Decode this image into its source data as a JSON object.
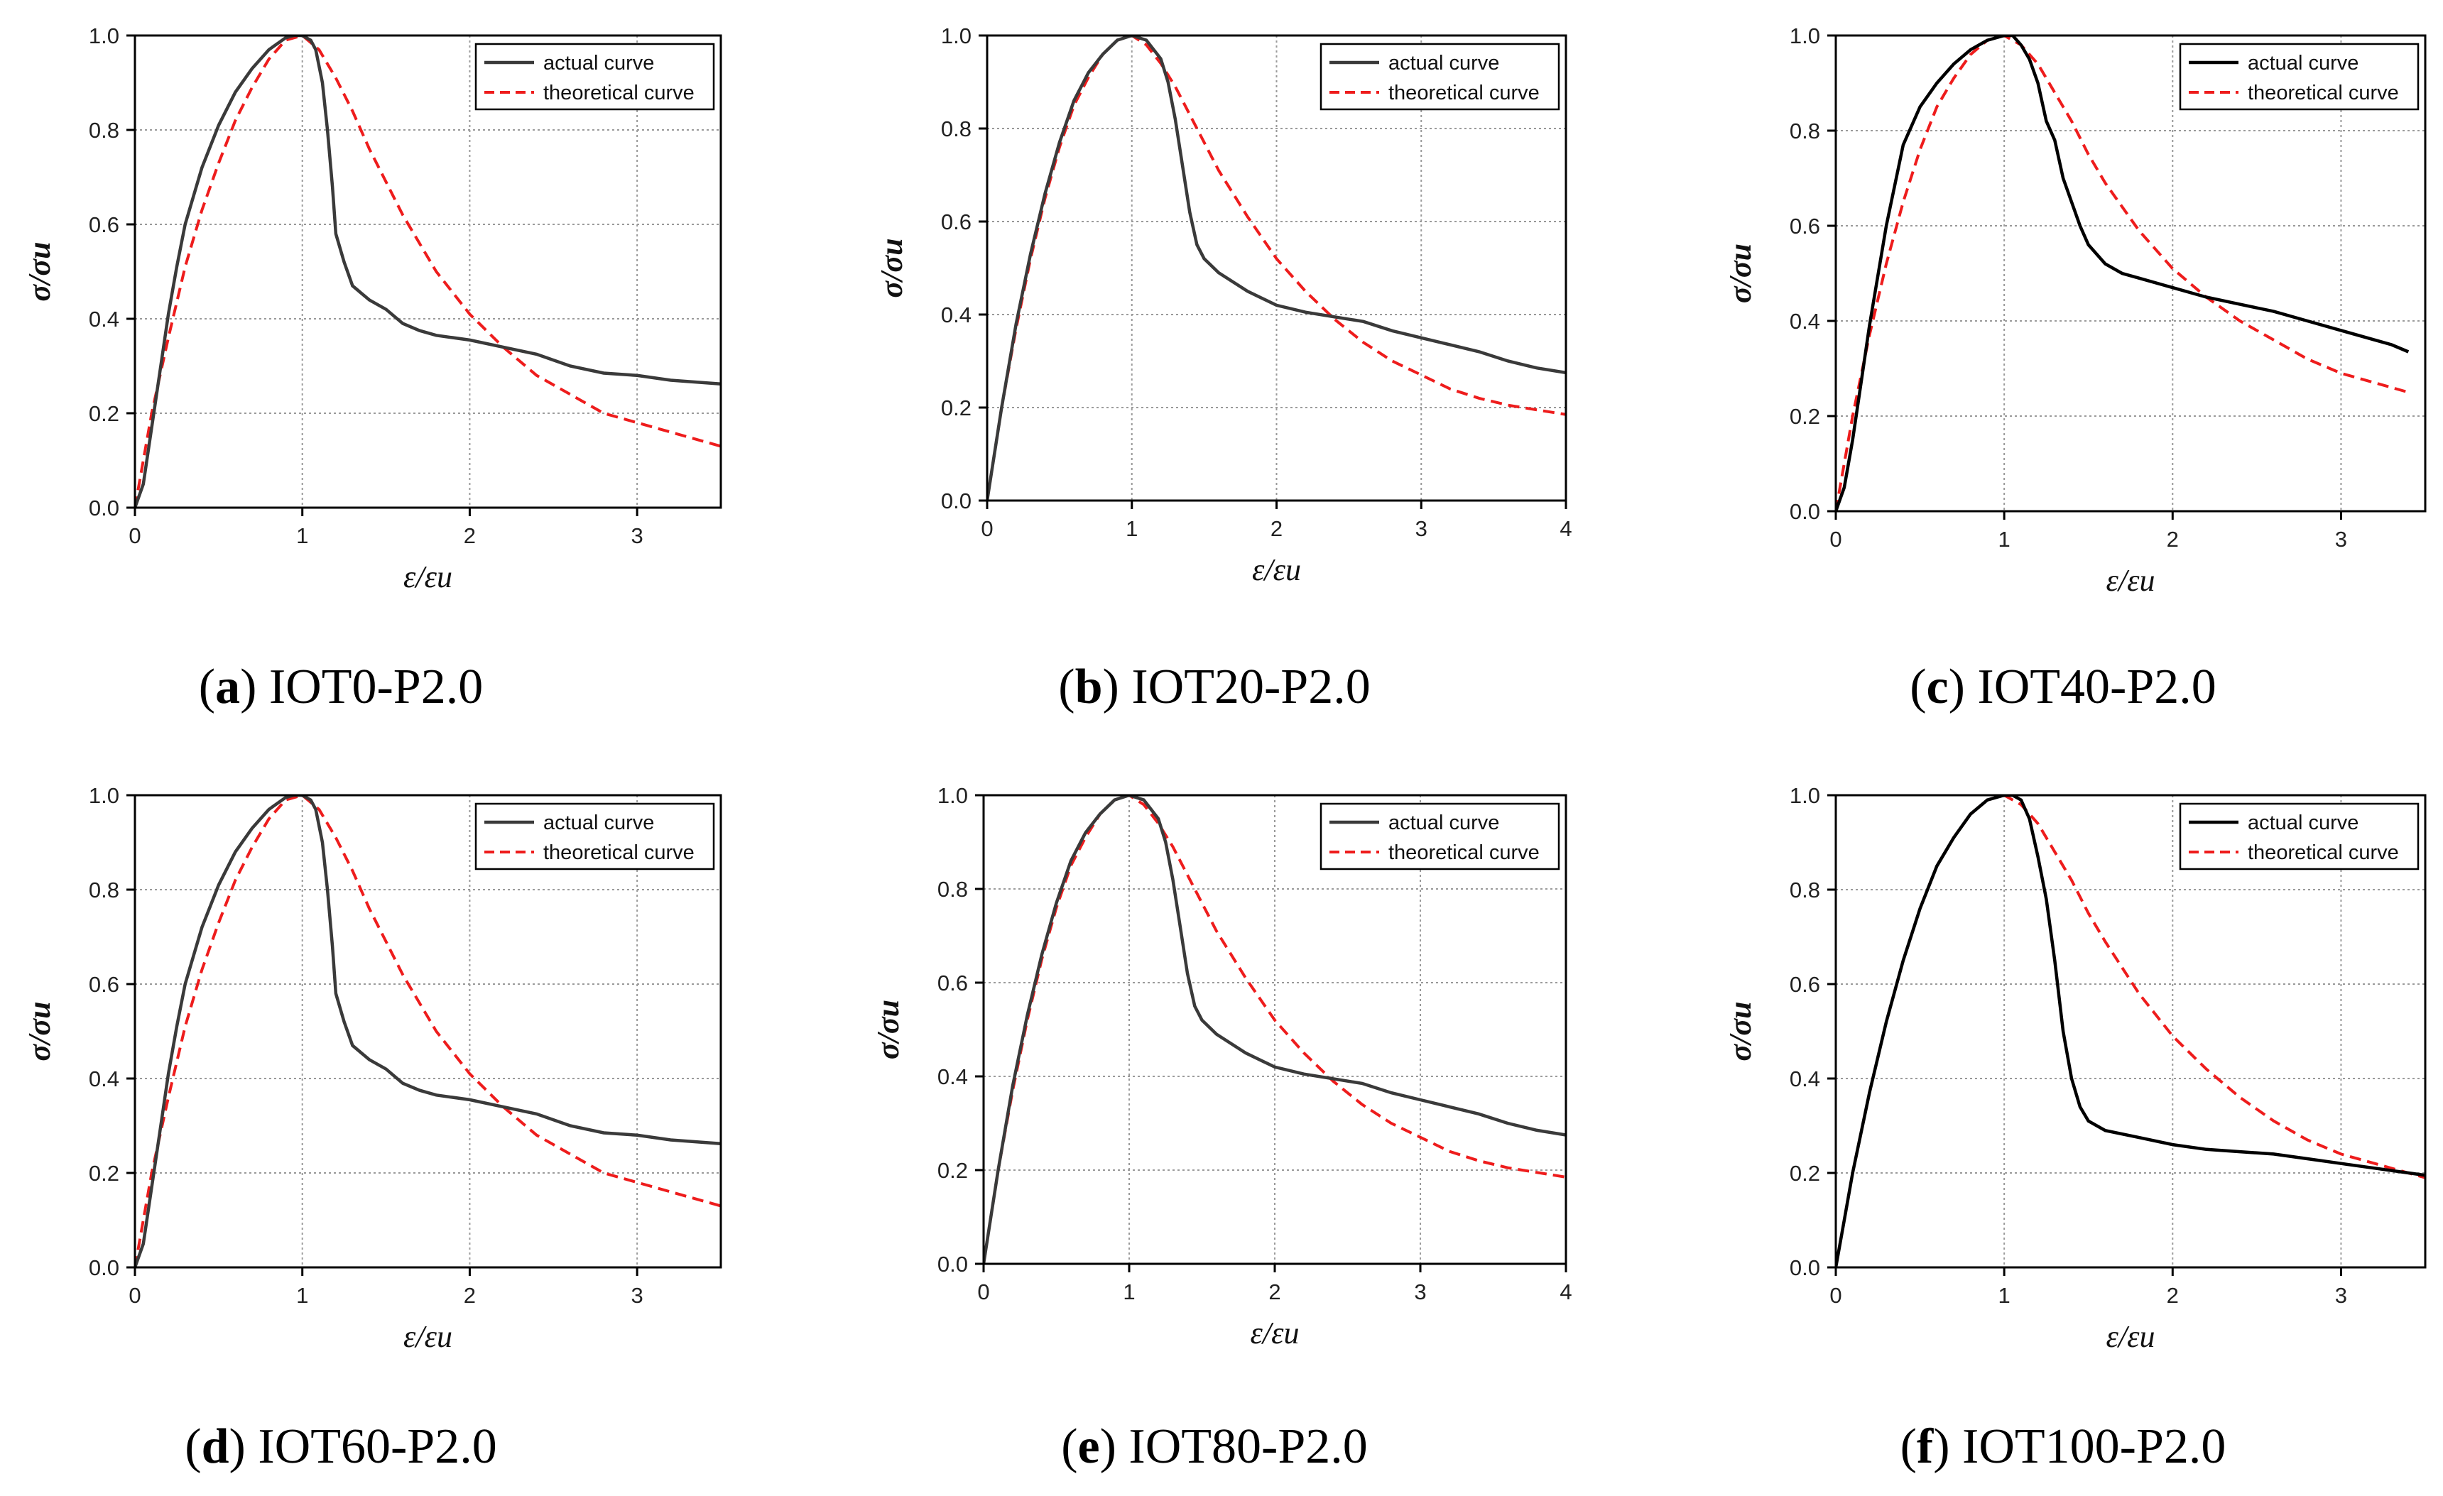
{
  "figure": {
    "actual_color": "#3a3a3a",
    "actual_color_dark": "#000000",
    "theory_color": "#ee1c1c",
    "grid_color": "#9a9a9a"
  },
  "chart_data": [
    {
      "type": "line",
      "letter": "a",
      "specimen": "IOT0-P2.0",
      "xlabel": "ε/εu",
      "ylabel": "σ/σu",
      "xlim": [
        0,
        3.5
      ],
      "ylim": [
        0,
        1.0
      ],
      "xticks": [
        0,
        1,
        2,
        3
      ],
      "yticks": [
        0,
        0.2,
        0.4,
        0.6,
        0.8,
        1.0
      ],
      "ytick_labels": [
        "0.0",
        "0.2",
        "0.4",
        "0.6",
        "0.8",
        "1.0"
      ],
      "grid": true,
      "legend": "top-right",
      "actual_style": "grey",
      "series": [
        {
          "name": "actual curve",
          "x": [
            0,
            0.05,
            0.1,
            0.15,
            0.2,
            0.25,
            0.3,
            0.4,
            0.5,
            0.6,
            0.7,
            0.8,
            0.9,
            0.95,
            1.0,
            1.05,
            1.08,
            1.12,
            1.15,
            1.18,
            1.2,
            1.25,
            1.3,
            1.4,
            1.5,
            1.6,
            1.7,
            1.8,
            2.0,
            2.2,
            2.4,
            2.6,
            2.8,
            3.0,
            3.2,
            3.5
          ],
          "y": [
            0,
            0.05,
            0.17,
            0.29,
            0.41,
            0.51,
            0.6,
            0.72,
            0.81,
            0.88,
            0.93,
            0.97,
            0.995,
            1.0,
            1.0,
            0.99,
            0.97,
            0.9,
            0.8,
            0.68,
            0.58,
            0.52,
            0.47,
            0.44,
            0.42,
            0.39,
            0.375,
            0.365,
            0.355,
            0.34,
            0.325,
            0.3,
            0.285,
            0.28,
            0.27,
            0.262
          ]
        },
        {
          "name": "theoretical curve",
          "x": [
            0,
            0.1,
            0.2,
            0.3,
            0.4,
            0.5,
            0.6,
            0.7,
            0.8,
            0.9,
            1.0,
            1.1,
            1.2,
            1.3,
            1.4,
            1.5,
            1.6,
            1.8,
            2.0,
            2.2,
            2.4,
            2.6,
            2.8,
            3.0,
            3.2,
            3.5
          ],
          "y": [
            0,
            0.2,
            0.36,
            0.51,
            0.63,
            0.73,
            0.82,
            0.89,
            0.95,
            0.99,
            1.0,
            0.97,
            0.91,
            0.84,
            0.76,
            0.69,
            0.62,
            0.5,
            0.41,
            0.34,
            0.28,
            0.24,
            0.2,
            0.18,
            0.16,
            0.13
          ]
        }
      ]
    },
    {
      "type": "line",
      "letter": "b",
      "specimen": "IOT20-P2.0",
      "xlabel": "ε/εu",
      "ylabel": "σ/σu",
      "xlim": [
        0,
        4
      ],
      "ylim": [
        0,
        1.0
      ],
      "xticks": [
        0,
        1,
        2,
        3,
        4
      ],
      "yticks": [
        0,
        0.2,
        0.4,
        0.6,
        0.8,
        1.0
      ],
      "ytick_labels": [
        "0.0",
        "0.2",
        "0.4",
        "0.6",
        "0.8",
        "1.0"
      ],
      "grid": true,
      "legend": "top-right",
      "actual_style": "grey",
      "series": [
        {
          "name": "actual curve",
          "x": [
            0,
            0.1,
            0.2,
            0.3,
            0.4,
            0.5,
            0.6,
            0.7,
            0.8,
            0.9,
            1.0,
            1.1,
            1.2,
            1.25,
            1.3,
            1.35,
            1.4,
            1.45,
            1.5,
            1.6,
            1.8,
            2.0,
            2.2,
            2.4,
            2.6,
            2.8,
            3.0,
            3.2,
            3.4,
            3.6,
            3.8,
            4.0
          ],
          "y": [
            0,
            0.2,
            0.38,
            0.53,
            0.66,
            0.77,
            0.86,
            0.92,
            0.96,
            0.99,
            1.0,
            0.99,
            0.95,
            0.9,
            0.82,
            0.72,
            0.62,
            0.55,
            0.52,
            0.49,
            0.45,
            0.42,
            0.405,
            0.395,
            0.385,
            0.365,
            0.35,
            0.335,
            0.32,
            0.3,
            0.285,
            0.275
          ]
        },
        {
          "name": "theoretical curve",
          "x": [
            0,
            0.1,
            0.2,
            0.3,
            0.4,
            0.5,
            0.6,
            0.7,
            0.8,
            0.9,
            1.0,
            1.1,
            1.2,
            1.3,
            1.4,
            1.5,
            1.6,
            1.8,
            2.0,
            2.2,
            2.4,
            2.6,
            2.8,
            3.0,
            3.2,
            3.4,
            3.6,
            3.8,
            4.0
          ],
          "y": [
            0,
            0.2,
            0.37,
            0.52,
            0.65,
            0.76,
            0.85,
            0.91,
            0.96,
            0.99,
            1.0,
            0.98,
            0.94,
            0.89,
            0.83,
            0.77,
            0.71,
            0.61,
            0.52,
            0.45,
            0.39,
            0.34,
            0.3,
            0.27,
            0.24,
            0.22,
            0.205,
            0.195,
            0.185
          ]
        }
      ]
    },
    {
      "type": "line",
      "letter": "c",
      "specimen": "IOT40-P2.0",
      "xlabel": "ε/εu",
      "ylabel": "σ/σu",
      "xlim": [
        0,
        3.5
      ],
      "ylim": [
        0,
        1.0
      ],
      "xticks": [
        0,
        1,
        2,
        3
      ],
      "yticks": [
        0,
        0.2,
        0.4,
        0.6,
        0.8,
        1.0
      ],
      "ytick_labels": [
        "0.0",
        "0.2",
        "0.4",
        "0.6",
        "0.8",
        "1.0"
      ],
      "grid": true,
      "legend": "top-right",
      "actual_style": "black",
      "series": [
        {
          "name": "actual curve",
          "x": [
            0,
            0.05,
            0.1,
            0.15,
            0.2,
            0.3,
            0.4,
            0.5,
            0.6,
            0.7,
            0.8,
            0.9,
            1.0,
            1.05,
            1.1,
            1.15,
            1.2,
            1.25,
            1.3,
            1.35,
            1.4,
            1.45,
            1.5,
            1.6,
            1.7,
            1.8,
            2.0,
            2.2,
            2.4,
            2.6,
            2.8,
            3.0,
            3.2,
            3.3,
            3.4
          ],
          "y": [
            0,
            0.05,
            0.15,
            0.27,
            0.39,
            0.6,
            0.77,
            0.85,
            0.9,
            0.94,
            0.97,
            0.99,
            1.0,
            1.0,
            0.98,
            0.95,
            0.9,
            0.82,
            0.78,
            0.7,
            0.65,
            0.6,
            0.56,
            0.52,
            0.5,
            0.49,
            0.47,
            0.45,
            0.435,
            0.42,
            0.4,
            0.38,
            0.36,
            0.35,
            0.335
          ]
        },
        {
          "name": "theoretical curve",
          "x": [
            0,
            0.1,
            0.2,
            0.3,
            0.4,
            0.5,
            0.6,
            0.7,
            0.8,
            0.9,
            1.0,
            1.1,
            1.2,
            1.3,
            1.4,
            1.5,
            1.6,
            1.8,
            2.0,
            2.2,
            2.4,
            2.6,
            2.8,
            3.0,
            3.2,
            3.4
          ],
          "y": [
            0,
            0.2,
            0.37,
            0.52,
            0.65,
            0.76,
            0.85,
            0.91,
            0.96,
            0.99,
            1.0,
            0.98,
            0.94,
            0.88,
            0.82,
            0.75,
            0.69,
            0.59,
            0.51,
            0.45,
            0.4,
            0.36,
            0.32,
            0.29,
            0.27,
            0.25
          ]
        }
      ]
    },
    {
      "type": "line",
      "letter": "d",
      "specimen": "IOT60-P2.0",
      "xlabel": "ε/εu",
      "ylabel": "σ/σu",
      "xlim": [
        0,
        3.5
      ],
      "ylim": [
        0,
        1.0
      ],
      "xticks": [
        0,
        1,
        2,
        3
      ],
      "yticks": [
        0,
        0.2,
        0.4,
        0.6,
        0.8,
        1.0
      ],
      "ytick_labels": [
        "0.0",
        "0.2",
        "0.4",
        "0.6",
        "0.8",
        "1.0"
      ],
      "grid": true,
      "legend": "top-right",
      "actual_style": "grey",
      "series": [
        {
          "name": "actual curve",
          "x": [
            0,
            0.05,
            0.1,
            0.15,
            0.2,
            0.25,
            0.3,
            0.4,
            0.5,
            0.6,
            0.7,
            0.8,
            0.9,
            0.95,
            1.0,
            1.05,
            1.08,
            1.12,
            1.15,
            1.18,
            1.2,
            1.25,
            1.3,
            1.4,
            1.5,
            1.6,
            1.7,
            1.8,
            2.0,
            2.2,
            2.4,
            2.6,
            2.8,
            3.0,
            3.2,
            3.5
          ],
          "y": [
            0,
            0.05,
            0.17,
            0.29,
            0.41,
            0.51,
            0.6,
            0.72,
            0.81,
            0.88,
            0.93,
            0.97,
            0.995,
            1.0,
            1.0,
            0.99,
            0.97,
            0.9,
            0.8,
            0.68,
            0.58,
            0.52,
            0.47,
            0.44,
            0.42,
            0.39,
            0.375,
            0.365,
            0.355,
            0.34,
            0.325,
            0.3,
            0.285,
            0.28,
            0.27,
            0.262
          ]
        },
        {
          "name": "theoretical curve",
          "x": [
            0,
            0.1,
            0.2,
            0.3,
            0.4,
            0.5,
            0.6,
            0.7,
            0.8,
            0.9,
            1.0,
            1.1,
            1.2,
            1.3,
            1.4,
            1.5,
            1.6,
            1.8,
            2.0,
            2.2,
            2.4,
            2.6,
            2.8,
            3.0,
            3.2,
            3.5
          ],
          "y": [
            0,
            0.2,
            0.36,
            0.51,
            0.63,
            0.73,
            0.82,
            0.89,
            0.95,
            0.99,
            1.0,
            0.97,
            0.91,
            0.84,
            0.76,
            0.69,
            0.62,
            0.5,
            0.41,
            0.34,
            0.28,
            0.24,
            0.2,
            0.18,
            0.16,
            0.13
          ]
        }
      ]
    },
    {
      "type": "line",
      "letter": "e",
      "specimen": "IOT80-P2.0",
      "xlabel": "ε/εu",
      "ylabel": "σ/σu",
      "xlim": [
        0,
        4
      ],
      "ylim": [
        0,
        1.0
      ],
      "xticks": [
        0,
        1,
        2,
        3,
        4
      ],
      "yticks": [
        0,
        0.2,
        0.4,
        0.6,
        0.8,
        1.0
      ],
      "ytick_labels": [
        "0.0",
        "0.2",
        "0.4",
        "0.6",
        "0.8",
        "1.0"
      ],
      "grid": true,
      "legend": "top-right",
      "actual_style": "grey",
      "series": [
        {
          "name": "actual curve",
          "x": [
            0,
            0.1,
            0.2,
            0.3,
            0.4,
            0.5,
            0.6,
            0.7,
            0.8,
            0.9,
            1.0,
            1.1,
            1.2,
            1.25,
            1.3,
            1.35,
            1.4,
            1.45,
            1.5,
            1.6,
            1.8,
            2.0,
            2.2,
            2.4,
            2.6,
            2.8,
            3.0,
            3.2,
            3.4,
            3.6,
            3.8,
            4.0
          ],
          "y": [
            0,
            0.2,
            0.38,
            0.53,
            0.66,
            0.77,
            0.86,
            0.92,
            0.96,
            0.99,
            1.0,
            0.99,
            0.95,
            0.9,
            0.82,
            0.72,
            0.62,
            0.55,
            0.52,
            0.49,
            0.45,
            0.42,
            0.405,
            0.395,
            0.385,
            0.365,
            0.35,
            0.335,
            0.32,
            0.3,
            0.285,
            0.275
          ]
        },
        {
          "name": "theoretical curve",
          "x": [
            0,
            0.1,
            0.2,
            0.3,
            0.4,
            0.5,
            0.6,
            0.7,
            0.8,
            0.9,
            1.0,
            1.1,
            1.2,
            1.3,
            1.4,
            1.5,
            1.6,
            1.8,
            2.0,
            2.2,
            2.4,
            2.6,
            2.8,
            3.0,
            3.2,
            3.4,
            3.6,
            3.8,
            4.0
          ],
          "y": [
            0,
            0.2,
            0.37,
            0.52,
            0.65,
            0.76,
            0.85,
            0.91,
            0.96,
            0.99,
            1.0,
            0.98,
            0.94,
            0.89,
            0.83,
            0.77,
            0.71,
            0.61,
            0.52,
            0.45,
            0.39,
            0.34,
            0.3,
            0.27,
            0.24,
            0.22,
            0.205,
            0.195,
            0.185
          ]
        }
      ]
    },
    {
      "type": "line",
      "letter": "f",
      "specimen": "IOT100-P2.0",
      "xlabel": "ε/εu",
      "ylabel": "σ/σu",
      "xlim": [
        0,
        3.5
      ],
      "ylim": [
        0,
        1.0
      ],
      "xticks": [
        0,
        1,
        2,
        3
      ],
      "yticks": [
        0,
        0.2,
        0.4,
        0.6,
        0.8,
        1.0
      ],
      "ytick_labels": [
        "0.0",
        "0.2",
        "0.4",
        "0.6",
        "0.8",
        "1.0"
      ],
      "grid": true,
      "legend": "top-right",
      "actual_style": "black",
      "series": [
        {
          "name": "actual curve",
          "x": [
            0,
            0.05,
            0.1,
            0.2,
            0.3,
            0.4,
            0.5,
            0.6,
            0.7,
            0.8,
            0.9,
            1.0,
            1.05,
            1.1,
            1.15,
            1.2,
            1.25,
            1.3,
            1.35,
            1.4,
            1.45,
            1.5,
            1.6,
            1.8,
            2.0,
            2.2,
            2.4,
            2.6,
            2.8,
            3.0,
            3.2,
            3.5
          ],
          "y": [
            0,
            0.1,
            0.2,
            0.37,
            0.52,
            0.65,
            0.76,
            0.85,
            0.91,
            0.96,
            0.99,
            1.0,
            1.0,
            0.99,
            0.95,
            0.87,
            0.78,
            0.65,
            0.5,
            0.4,
            0.34,
            0.31,
            0.29,
            0.275,
            0.26,
            0.25,
            0.245,
            0.24,
            0.23,
            0.22,
            0.21,
            0.195
          ]
        },
        {
          "name": "theoretical curve",
          "x": [
            0,
            0.1,
            0.2,
            0.3,
            0.4,
            0.5,
            0.6,
            0.7,
            0.8,
            0.9,
            1.0,
            1.1,
            1.2,
            1.3,
            1.4,
            1.5,
            1.6,
            1.8,
            2.0,
            2.2,
            2.4,
            2.6,
            2.8,
            3.0,
            3.2,
            3.5
          ],
          "y": [
            0,
            0.2,
            0.37,
            0.52,
            0.65,
            0.76,
            0.85,
            0.91,
            0.96,
            0.99,
            1.0,
            0.98,
            0.94,
            0.88,
            0.82,
            0.75,
            0.69,
            0.58,
            0.49,
            0.42,
            0.36,
            0.31,
            0.27,
            0.24,
            0.22,
            0.19
          ]
        }
      ]
    }
  ]
}
